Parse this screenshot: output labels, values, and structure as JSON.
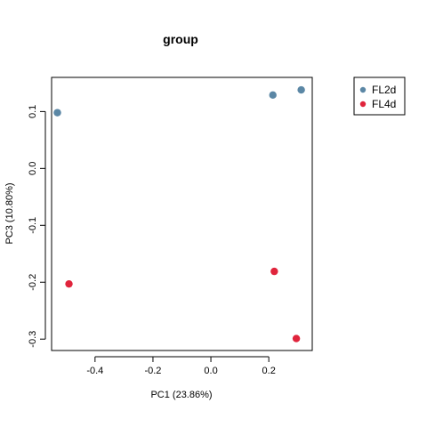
{
  "chart_data": {
    "type": "scatter",
    "title": "group",
    "xlabel": "PC1 (23.86%)",
    "ylabel": "PC3 (10.80%)",
    "xlim": [
      -0.55,
      0.35
    ],
    "ylim": [
      -0.32,
      0.16
    ],
    "xticks": [
      {
        "value": -0.4,
        "label": "-0.4"
      },
      {
        "value": -0.2,
        "label": "-0.2"
      },
      {
        "value": 0.0,
        "label": "0.0"
      },
      {
        "value": 0.2,
        "label": "0.2"
      }
    ],
    "yticks": [
      {
        "value": 0.1,
        "label": "0.1"
      },
      {
        "value": 0.0,
        "label": "0.0"
      },
      {
        "value": -0.1,
        "label": "-0.1"
      },
      {
        "value": -0.2,
        "label": "-0.2"
      },
      {
        "value": -0.3,
        "label": "-0.3"
      }
    ],
    "grid": false,
    "legend_position": "right",
    "series": [
      {
        "name": "FL2d",
        "color": "#5b87a5",
        "points": [
          {
            "x": -0.53,
            "y": 0.098
          },
          {
            "x": 0.214,
            "y": 0.129
          },
          {
            "x": 0.312,
            "y": 0.138
          }
        ]
      },
      {
        "name": "FL4d",
        "color": "#e0243c",
        "points": [
          {
            "x": -0.49,
            "y": -0.203
          },
          {
            "x": 0.219,
            "y": -0.181
          },
          {
            "x": 0.295,
            "y": -0.299
          }
        ]
      }
    ]
  }
}
